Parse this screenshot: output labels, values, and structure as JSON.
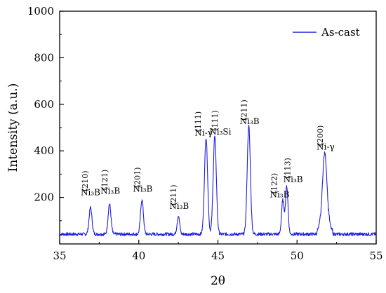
{
  "chart_data": {
    "type": "line",
    "title": "",
    "xlabel": "2θ",
    "ylabel": "Intensity (a.u.)",
    "xlim": [
      35,
      55
    ],
    "ylim": [
      0,
      1000
    ],
    "x_ticks": [
      "35",
      "40",
      "45",
      "50",
      "55"
    ],
    "y_ticks": [
      "200",
      "400",
      "600",
      "800",
      "1000"
    ],
    "x_tick_values": [
      35,
      40,
      45,
      50,
      55
    ],
    "y_tick_values": [
      200,
      400,
      600,
      800,
      1000
    ],
    "legend": {
      "position": "top-right",
      "entries": [
        "As-cast"
      ]
    },
    "series": [
      {
        "name": "As-cast",
        "color": "#2020e0",
        "baseline": 42,
        "peaks": [
          {
            "x": 36.95,
            "height": 115,
            "width": 0.09
          },
          {
            "x": 38.15,
            "height": 130,
            "width": 0.09
          },
          {
            "x": 40.2,
            "height": 148,
            "width": 0.09
          },
          {
            "x": 42.5,
            "height": 78,
            "width": 0.08
          },
          {
            "x": 44.25,
            "height": 415,
            "width": 0.1
          },
          {
            "x": 44.8,
            "height": 420,
            "width": 0.1
          },
          {
            "x": 46.95,
            "height": 465,
            "width": 0.1
          },
          {
            "x": 49.1,
            "height": 145,
            "width": 0.08
          },
          {
            "x": 49.35,
            "height": 205,
            "width": 0.08
          },
          {
            "x": 51.75,
            "height": 348,
            "width": 0.15
          }
        ]
      }
    ],
    "annotations": [
      {
        "x": 36.95,
        "y": 210,
        "phase": "Ni₃B",
        "hkl": "(210)"
      },
      {
        "x": 38.2,
        "y": 215,
        "phase": "Ni₃B",
        "hkl": "(121)"
      },
      {
        "x": 40.25,
        "y": 225,
        "phase": "Ni₃B",
        "hkl": "(201)"
      },
      {
        "x": 42.55,
        "y": 150,
        "phase": "Ni₃B",
        "hkl": "(211)"
      },
      {
        "x": 44.1,
        "y": 465,
        "phase": "Ni-γ",
        "hkl": "(111)"
      },
      {
        "x": 45.15,
        "y": 470,
        "phase": "Ni₃Si",
        "hkl": "(111)"
      },
      {
        "x": 47.0,
        "y": 515,
        "phase": "Ni₃B",
        "hkl": "(211)"
      },
      {
        "x": 48.9,
        "y": 200,
        "phase": "Ni₃B",
        "hkl": "(122)"
      },
      {
        "x": 49.75,
        "y": 265,
        "phase": "Ni₃B",
        "hkl": "(113)"
      },
      {
        "x": 51.8,
        "y": 405,
        "phase": "Ni-γ",
        "hkl": "(200)"
      }
    ]
  }
}
